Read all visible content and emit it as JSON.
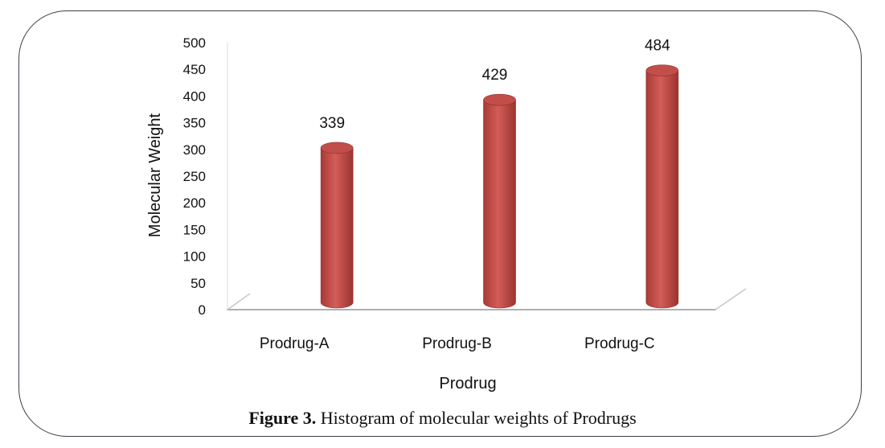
{
  "figure": {
    "caption_number": "Figure 3.",
    "caption_text": " Histogram of molecular weights of Prodrugs"
  },
  "chart_data": {
    "type": "bar",
    "categories": [
      "Prodrug-A",
      "Prodrug-B",
      "Prodrug-C"
    ],
    "values": [
      339,
      429,
      484
    ],
    "data_labels": [
      "339",
      "429",
      "484"
    ],
    "xlabel": "Prodrug",
    "ylabel": "Molecular Weight",
    "ylim": [
      0,
      500
    ],
    "yticks": [
      0,
      50,
      100,
      150,
      200,
      250,
      300,
      350,
      400,
      450,
      500
    ],
    "bar_color": "#c0504d",
    "bar_style": "3d-cylinder",
    "grid": false,
    "legend": "none"
  }
}
